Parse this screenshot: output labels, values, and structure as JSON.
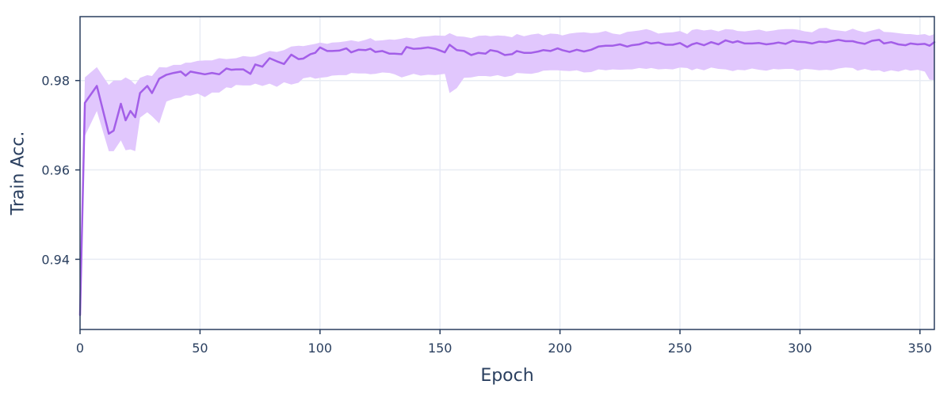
{
  "chart_data": {
    "type": "line",
    "title": "",
    "xlabel": "Epoch",
    "ylabel": "Train Acc.",
    "xlim": [
      0,
      356
    ],
    "ylim": [
      0.9243,
      0.9943
    ],
    "grid": true,
    "x_ticks": [
      0,
      50,
      100,
      150,
      200,
      250,
      300,
      350
    ],
    "y_ticks": [
      0.94,
      0.96,
      0.98
    ],
    "y_tick_labels": [
      "0.94",
      "0.96",
      "0.98"
    ],
    "colors": {
      "line": "#a35ee8",
      "band": "#e1c7fd",
      "axis": "#2a3f5f",
      "grid": "#e8ecf4"
    },
    "series": [
      {
        "x": [
          0,
          2,
          7,
          12,
          14,
          17,
          19,
          21,
          23,
          25,
          28,
          30,
          33,
          36,
          39,
          42,
          44,
          46,
          49,
          52,
          55,
          58,
          61,
          63,
          65,
          68,
          71,
          73,
          76,
          79,
          82,
          85,
          88,
          91,
          93,
          96,
          98,
          100,
          103,
          105,
          108,
          111,
          113,
          116,
          119,
          121,
          123,
          126,
          129,
          131,
          134,
          136,
          139,
          142,
          145,
          148,
          152,
          154,
          157,
          160,
          163,
          166,
          169,
          171,
          174,
          177,
          180,
          182,
          185,
          188,
          191,
          193,
          196,
          199,
          201,
          204,
          207,
          210,
          213,
          216,
          219,
          222,
          225,
          228,
          230,
          233,
          236,
          238,
          241,
          244,
          247,
          250,
          253,
          255,
          257,
          260,
          263,
          266,
          269,
          272,
          274,
          277,
          280,
          283,
          286,
          289,
          291,
          294,
          297,
          299,
          302,
          305,
          308,
          311,
          313,
          316,
          319,
          322,
          324,
          327,
          330,
          333,
          335,
          338,
          341,
          344,
          346,
          349,
          352,
          354,
          356
        ],
        "y": [
          0.9275,
          0.975,
          0.9788,
          0.9681,
          0.9688,
          0.9748,
          0.9711,
          0.9732,
          0.9718,
          0.9772,
          0.9788,
          0.9772,
          0.9804,
          0.9813,
          0.9817,
          0.982,
          0.9811,
          0.982,
          0.9817,
          0.9814,
          0.9817,
          0.9814,
          0.9827,
          0.9824,
          0.9825,
          0.9825,
          0.9815,
          0.9836,
          0.9831,
          0.985,
          0.9843,
          0.9837,
          0.9858,
          0.9848,
          0.9849,
          0.9859,
          0.9862,
          0.9874,
          0.9866,
          0.9866,
          0.9867,
          0.9872,
          0.9863,
          0.9869,
          0.9868,
          0.9871,
          0.9864,
          0.9866,
          0.986,
          0.986,
          0.9859,
          0.9875,
          0.9871,
          0.9872,
          0.9874,
          0.9871,
          0.9863,
          0.988,
          0.9868,
          0.9866,
          0.9857,
          0.9862,
          0.986,
          0.9868,
          0.9865,
          0.9857,
          0.9859,
          0.9866,
          0.9862,
          0.9862,
          0.9865,
          0.9868,
          0.9866,
          0.9872,
          0.9868,
          0.9864,
          0.9869,
          0.9865,
          0.9869,
          0.9876,
          0.9878,
          0.9878,
          0.9881,
          0.9876,
          0.9879,
          0.9881,
          0.9886,
          0.9883,
          0.9885,
          0.988,
          0.988,
          0.9884,
          0.9875,
          0.9881,
          0.9884,
          0.9879,
          0.9886,
          0.9881,
          0.989,
          0.9885,
          0.9888,
          0.9883,
          0.9883,
          0.9884,
          0.9881,
          0.9883,
          0.9885,
          0.9882,
          0.9889,
          0.9887,
          0.9886,
          0.9883,
          0.9887,
          0.9886,
          0.9888,
          0.9891,
          0.9888,
          0.9888,
          0.9885,
          0.9882,
          0.9889,
          0.9891,
          0.9883,
          0.9886,
          0.9881,
          0.9879,
          0.9883,
          0.9881,
          0.9882,
          0.9878,
          0.9886
        ],
        "upper": [
          0.9273,
          0.9807,
          0.983,
          0.979,
          0.98,
          0.98,
          0.9807,
          0.9801,
          0.9791,
          0.9806,
          0.9812,
          0.981,
          0.983,
          0.9829,
          0.9835,
          0.9835,
          0.984,
          0.984,
          0.9844,
          0.9845,
          0.9845,
          0.985,
          0.9848,
          0.9849,
          0.985,
          0.9855,
          0.9853,
          0.9854,
          0.986,
          0.9866,
          0.9864,
          0.9868,
          0.9876,
          0.9878,
          0.9877,
          0.988,
          0.9882,
          0.9885,
          0.9882,
          0.9885,
          0.9886,
          0.9888,
          0.989,
          0.9887,
          0.9891,
          0.9895,
          0.9889,
          0.989,
          0.9892,
          0.9891,
          0.9894,
          0.9896,
          0.9894,
          0.9898,
          0.9899,
          0.9901,
          0.99,
          0.9906,
          0.9899,
          0.9898,
          0.9895,
          0.99,
          0.9901,
          0.9899,
          0.9901,
          0.99,
          0.9897,
          0.9904,
          0.9899,
          0.9903,
          0.9905,
          0.9901,
          0.9905,
          0.9904,
          0.9901,
          0.9905,
          0.9907,
          0.9908,
          0.9906,
          0.9907,
          0.9911,
          0.9905,
          0.9903,
          0.9909,
          0.991,
          0.9912,
          0.9915,
          0.9912,
          0.9905,
          0.9907,
          0.9908,
          0.9911,
          0.9904,
          0.9913,
          0.9915,
          0.9912,
          0.9914,
          0.991,
          0.9915,
          0.9914,
          0.9911,
          0.991,
          0.9912,
          0.9914,
          0.991,
          0.9912,
          0.9914,
          0.9915,
          0.9915,
          0.9914,
          0.991,
          0.9908,
          0.9917,
          0.9918,
          0.9914,
          0.9912,
          0.991,
          0.9916,
          0.9912,
          0.9908,
          0.9912,
          0.9916,
          0.9909,
          0.9908,
          0.9906,
          0.9904,
          0.9904,
          0.9902,
          0.9904,
          0.99,
          0.9904
        ],
        "lower": [
          0.927,
          0.9676,
          0.9732,
          0.9642,
          0.9642,
          0.9666,
          0.9644,
          0.9646,
          0.9642,
          0.9717,
          0.9729,
          0.972,
          0.9704,
          0.9753,
          0.9759,
          0.9762,
          0.9767,
          0.9766,
          0.9771,
          0.9763,
          0.9773,
          0.9773,
          0.9785,
          0.9783,
          0.979,
          0.9789,
          0.9789,
          0.9793,
          0.9788,
          0.9793,
          0.9786,
          0.9796,
          0.9791,
          0.9795,
          0.9805,
          0.9808,
          0.9804,
          0.9806,
          0.9808,
          0.9811,
          0.9812,
          0.9812,
          0.9817,
          0.9816,
          0.9816,
          0.9814,
          0.9815,
          0.9818,
          0.9817,
          0.9814,
          0.9807,
          0.981,
          0.9815,
          0.9811,
          0.9813,
          0.9812,
          0.9815,
          0.9772,
          0.9783,
          0.9806,
          0.9807,
          0.981,
          0.981,
          0.9809,
          0.9812,
          0.9808,
          0.9811,
          0.9817,
          0.9816,
          0.9815,
          0.9818,
          0.9822,
          0.9823,
          0.9823,
          0.9822,
          0.9821,
          0.9823,
          0.9818,
          0.9819,
          0.9825,
          0.9823,
          0.9825,
          0.9824,
          0.9825,
          0.9825,
          0.9828,
          0.9826,
          0.9828,
          0.9825,
          0.9826,
          0.9825,
          0.9829,
          0.9828,
          0.9823,
          0.9827,
          0.9823,
          0.9829,
          0.9826,
          0.9825,
          0.9821,
          0.9824,
          0.9823,
          0.9827,
          0.9824,
          0.9822,
          0.9826,
          0.9825,
          0.9826,
          0.9826,
          0.9822,
          0.9826,
          0.9825,
          0.9823,
          0.9824,
          0.9823,
          0.9827,
          0.9829,
          0.9828,
          0.9822,
          0.9826,
          0.9822,
          0.9823,
          0.9819,
          0.9823,
          0.982,
          0.9825,
          0.9822,
          0.9824,
          0.982,
          0.9802,
          0.9801
        ]
      }
    ]
  }
}
